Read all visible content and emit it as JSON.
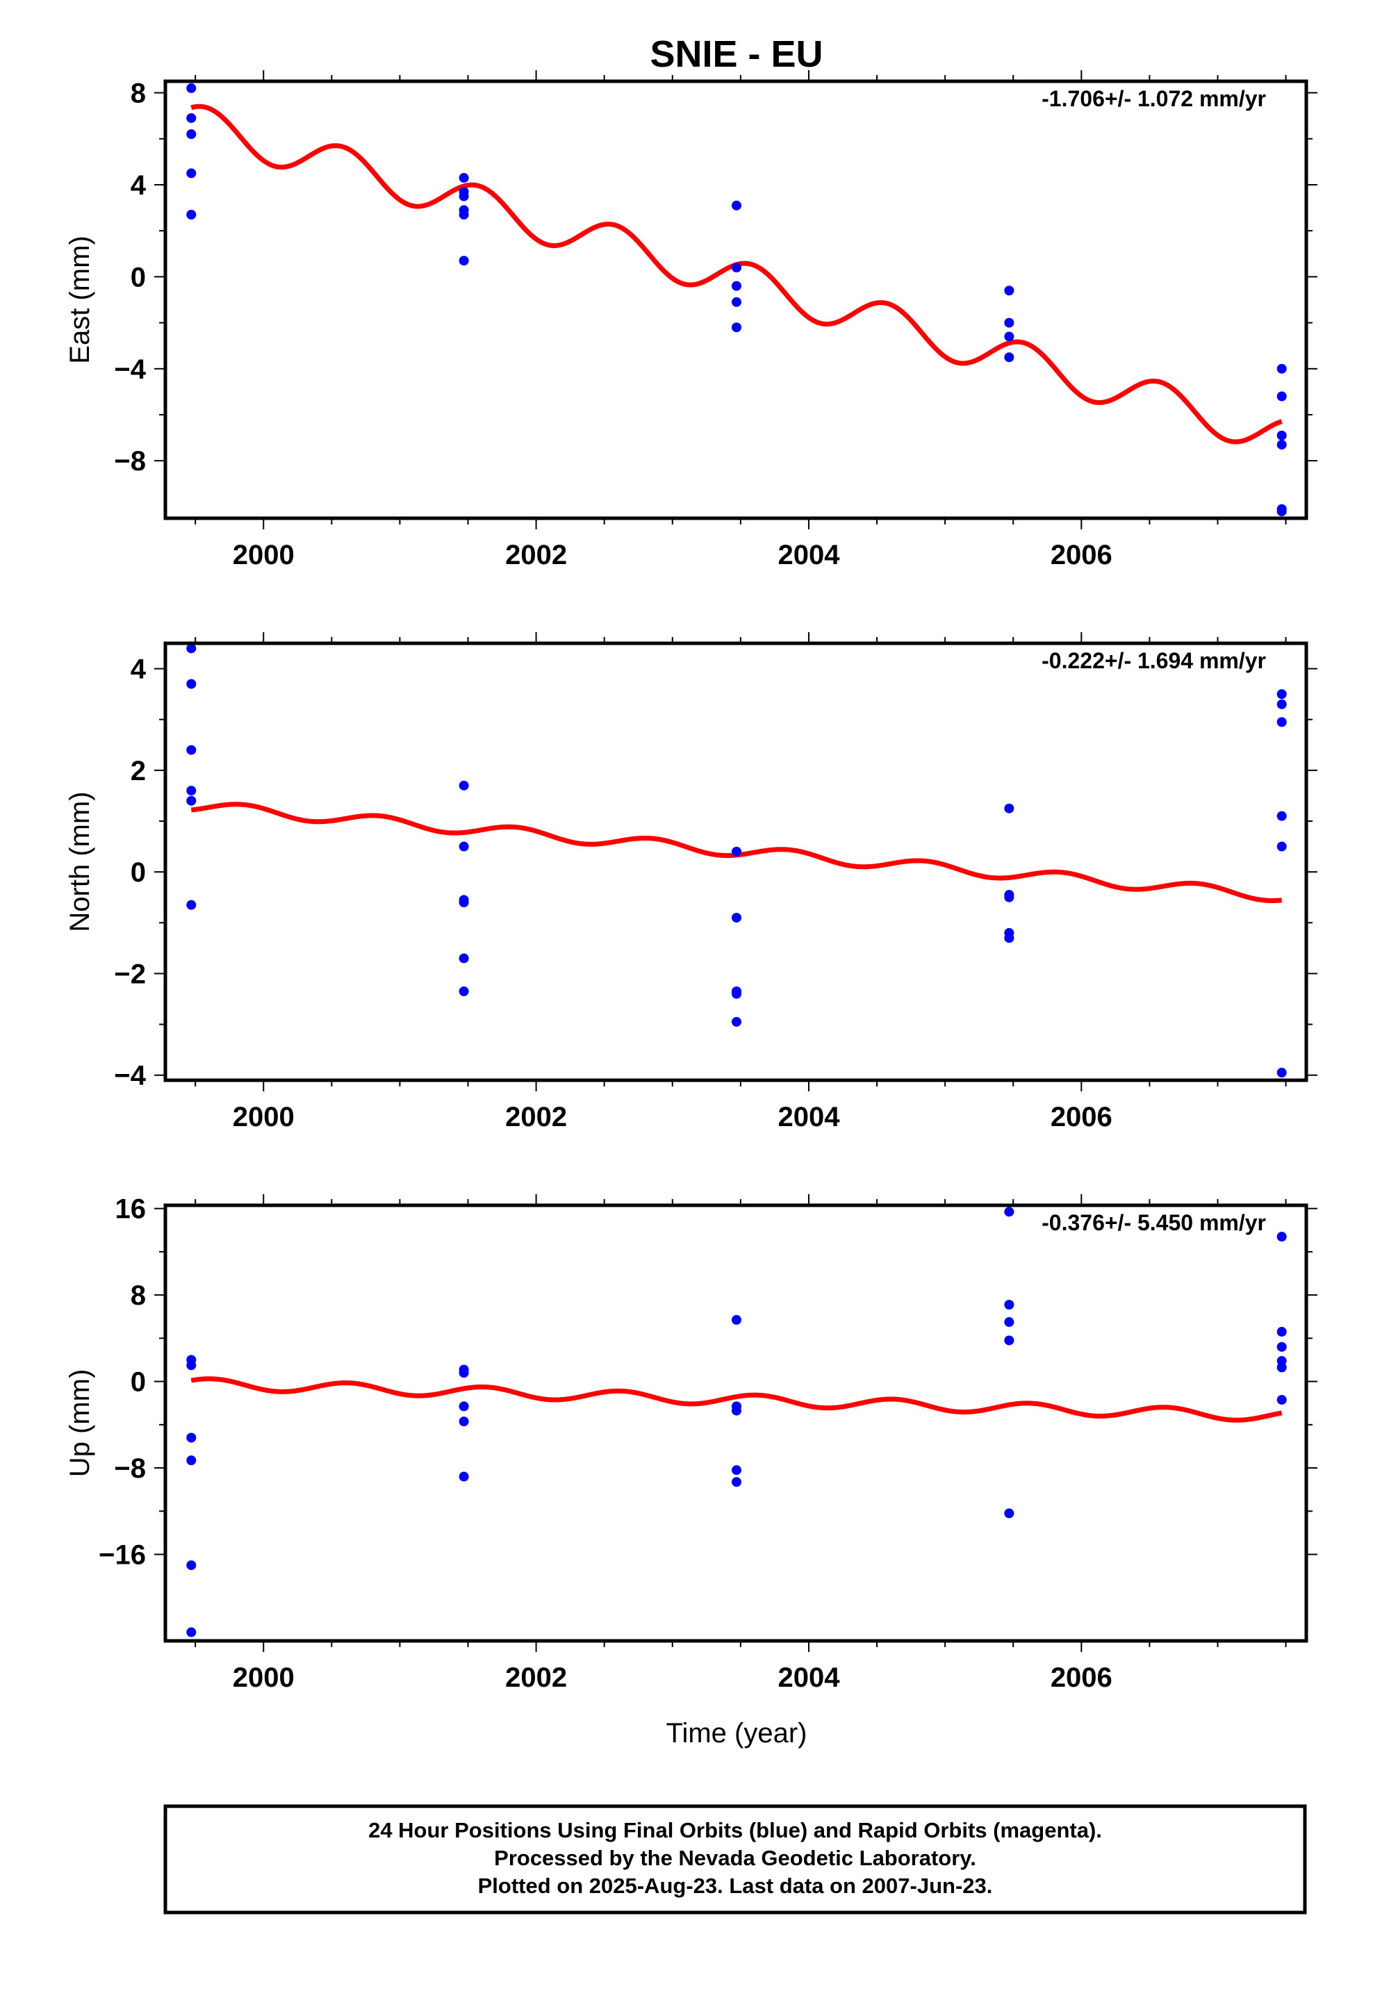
{
  "title": "SNIE - EU",
  "xlabel": "Time (year)",
  "footer": {
    "lines": [
      "24 Hour Positions Using Final Orbits (blue) and Rapid Orbits (magenta).",
      "Processed by the Nevada Geodetic Laboratory.",
      "Plotted on 2025-Aug-23. Last data on 2007-Jun-23."
    ]
  },
  "colors": {
    "data": "#0000ff",
    "model": "#ff0000",
    "axis": "#000000"
  },
  "chart_data": [
    {
      "type": "scatter",
      "ylabel": "East (mm)",
      "rate_label": "-1.706+/- 1.072 mm/yr",
      "xlim": [
        1999.28,
        2007.65
      ],
      "ylim": [
        -10.5,
        8.5
      ],
      "xticks": [
        2000,
        2002,
        2004,
        2006
      ],
      "xtick_labels": [
        "2000",
        "2002",
        "2004",
        "2006"
      ],
      "yticks": [
        8,
        4,
        0,
        -4,
        -8
      ],
      "ytick_labels": [
        "8",
        "4",
        "0",
        "−4",
        "−8"
      ],
      "series": [
        {
          "role": "daily positions",
          "x": [
            1999.47,
            1999.47,
            1999.47,
            1999.47,
            1999.47,
            2001.47,
            2001.47,
            2001.47,
            2001.47,
            2001.47,
            2001.47,
            2003.47,
            2003.47,
            2003.47,
            2003.47,
            2003.47,
            2005.47,
            2005.47,
            2005.47,
            2005.47,
            2007.47,
            2007.47,
            2007.47,
            2007.47,
            2007.47,
            2007.47
          ],
          "y": [
            8.2,
            6.9,
            6.2,
            4.5,
            2.7,
            4.3,
            3.7,
            3.5,
            2.9,
            2.7,
            0.7,
            3.1,
            0.4,
            -0.4,
            -1.1,
            -2.2,
            -0.6,
            -2.0,
            -2.6,
            -3.5,
            -4.0,
            -5.2,
            -6.9,
            -7.3,
            -10.1,
            -10.2
          ]
        },
        {
          "role": "model fit",
          "linear_trend": [
            6.7,
            -1.706
          ],
          "annual_amplitude": 0.85,
          "annual_peak_phase": 0.58
        }
      ]
    },
    {
      "type": "scatter",
      "ylabel": "North (mm)",
      "rate_label": "-0.222+/- 1.694 mm/yr",
      "xlim": [
        1999.28,
        2007.65
      ],
      "ylim": [
        -4.1,
        4.5
      ],
      "xticks": [
        2000,
        2002,
        2004,
        2006
      ],
      "xtick_labels": [
        "2000",
        "2002",
        "2004",
        "2006"
      ],
      "yticks": [
        4,
        2,
        0,
        -2,
        -4
      ],
      "ytick_labels": [
        "4",
        "2",
        "0",
        "−2",
        "−4"
      ],
      "series": [
        {
          "role": "daily positions",
          "x": [
            1999.47,
            1999.47,
            1999.47,
            1999.47,
            1999.47,
            1999.47,
            2001.47,
            2001.47,
            2001.47,
            2001.47,
            2001.47,
            2001.47,
            2003.47,
            2003.47,
            2003.47,
            2003.47,
            2003.47,
            2005.47,
            2005.47,
            2005.47,
            2005.47,
            2005.47,
            2007.47,
            2007.47,
            2007.47,
            2007.47,
            2007.47,
            2007.47
          ],
          "y": [
            4.4,
            3.7,
            2.4,
            1.6,
            1.4,
            -0.65,
            1.7,
            0.5,
            -0.55,
            -0.6,
            -1.7,
            -2.35,
            0.4,
            -0.9,
            -2.35,
            -2.4,
            -2.95,
            1.25,
            -0.45,
            -0.5,
            -1.2,
            -1.3,
            3.5,
            3.3,
            2.95,
            1.1,
            0.5,
            -3.95
          ]
        },
        {
          "role": "model fit",
          "linear_trend": [
            1.3,
            -0.222
          ],
          "annual_amplitude": 0.11,
          "annual_peak_phase": 0.85
        }
      ]
    },
    {
      "type": "scatter",
      "ylabel": "Up (mm)",
      "rate_label": "-0.376+/- 5.450 mm/yr",
      "xlim": [
        1999.28,
        2007.65
      ],
      "ylim": [
        -24,
        16.3
      ],
      "xticks": [
        2000,
        2002,
        2004,
        2006
      ],
      "xtick_labels": [
        "2000",
        "2002",
        "2004",
        "2006"
      ],
      "yticks": [
        16,
        8,
        0,
        -8,
        -16
      ],
      "ytick_labels": [
        "16",
        "8",
        "0",
        "−8",
        "−16"
      ],
      "series": [
        {
          "role": "daily positions",
          "x": [
            1999.47,
            1999.47,
            1999.47,
            1999.47,
            1999.47,
            1999.47,
            2001.47,
            2001.47,
            2001.47,
            2001.47,
            2001.47,
            2003.47,
            2003.47,
            2003.47,
            2003.47,
            2003.47,
            2005.47,
            2005.47,
            2005.47,
            2005.47,
            2005.47,
            2007.47,
            2007.47,
            2007.47,
            2007.47,
            2007.47,
            2007.47
          ],
          "y": [
            2.0,
            1.5,
            -5.2,
            -7.3,
            -17.0,
            -23.2,
            1.1,
            0.8,
            -2.3,
            -3.7,
            -8.8,
            5.7,
            -2.3,
            -2.7,
            -8.2,
            -9.3,
            15.7,
            7.1,
            5.5,
            3.8,
            -12.2,
            13.4,
            4.6,
            3.2,
            1.9,
            1.3,
            -1.7
          ]
        },
        {
          "role": "model fit",
          "linear_trend": [
            -0.2,
            -0.376
          ],
          "annual_amplitude": 0.5,
          "annual_peak_phase": 0.62
        }
      ]
    }
  ]
}
